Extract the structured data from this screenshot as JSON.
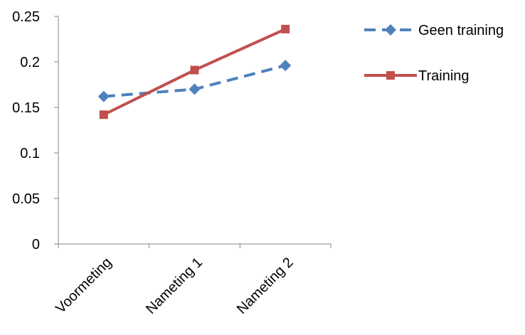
{
  "chart_data": {
    "type": "line",
    "title": "",
    "xlabel": "",
    "ylabel": "",
    "categories": [
      "Voormeting",
      "Nameting 1",
      "Nameting 2"
    ],
    "ylim": [
      0,
      0.25
    ],
    "yticks": [
      "0",
      "0.05",
      "0.1",
      "0.15",
      "0.2",
      "0.25"
    ],
    "grid": false,
    "legend": "right",
    "series": [
      {
        "name": "Geen training",
        "values": [
          0.162,
          0.17,
          0.196
        ],
        "color": "#4F81BD",
        "line": "dashed",
        "marker": "diamond"
      },
      {
        "name": "Training",
        "values": [
          0.142,
          0.191,
          0.236
        ],
        "color": "#C0504D",
        "line": "solid",
        "marker": "square"
      }
    ]
  }
}
